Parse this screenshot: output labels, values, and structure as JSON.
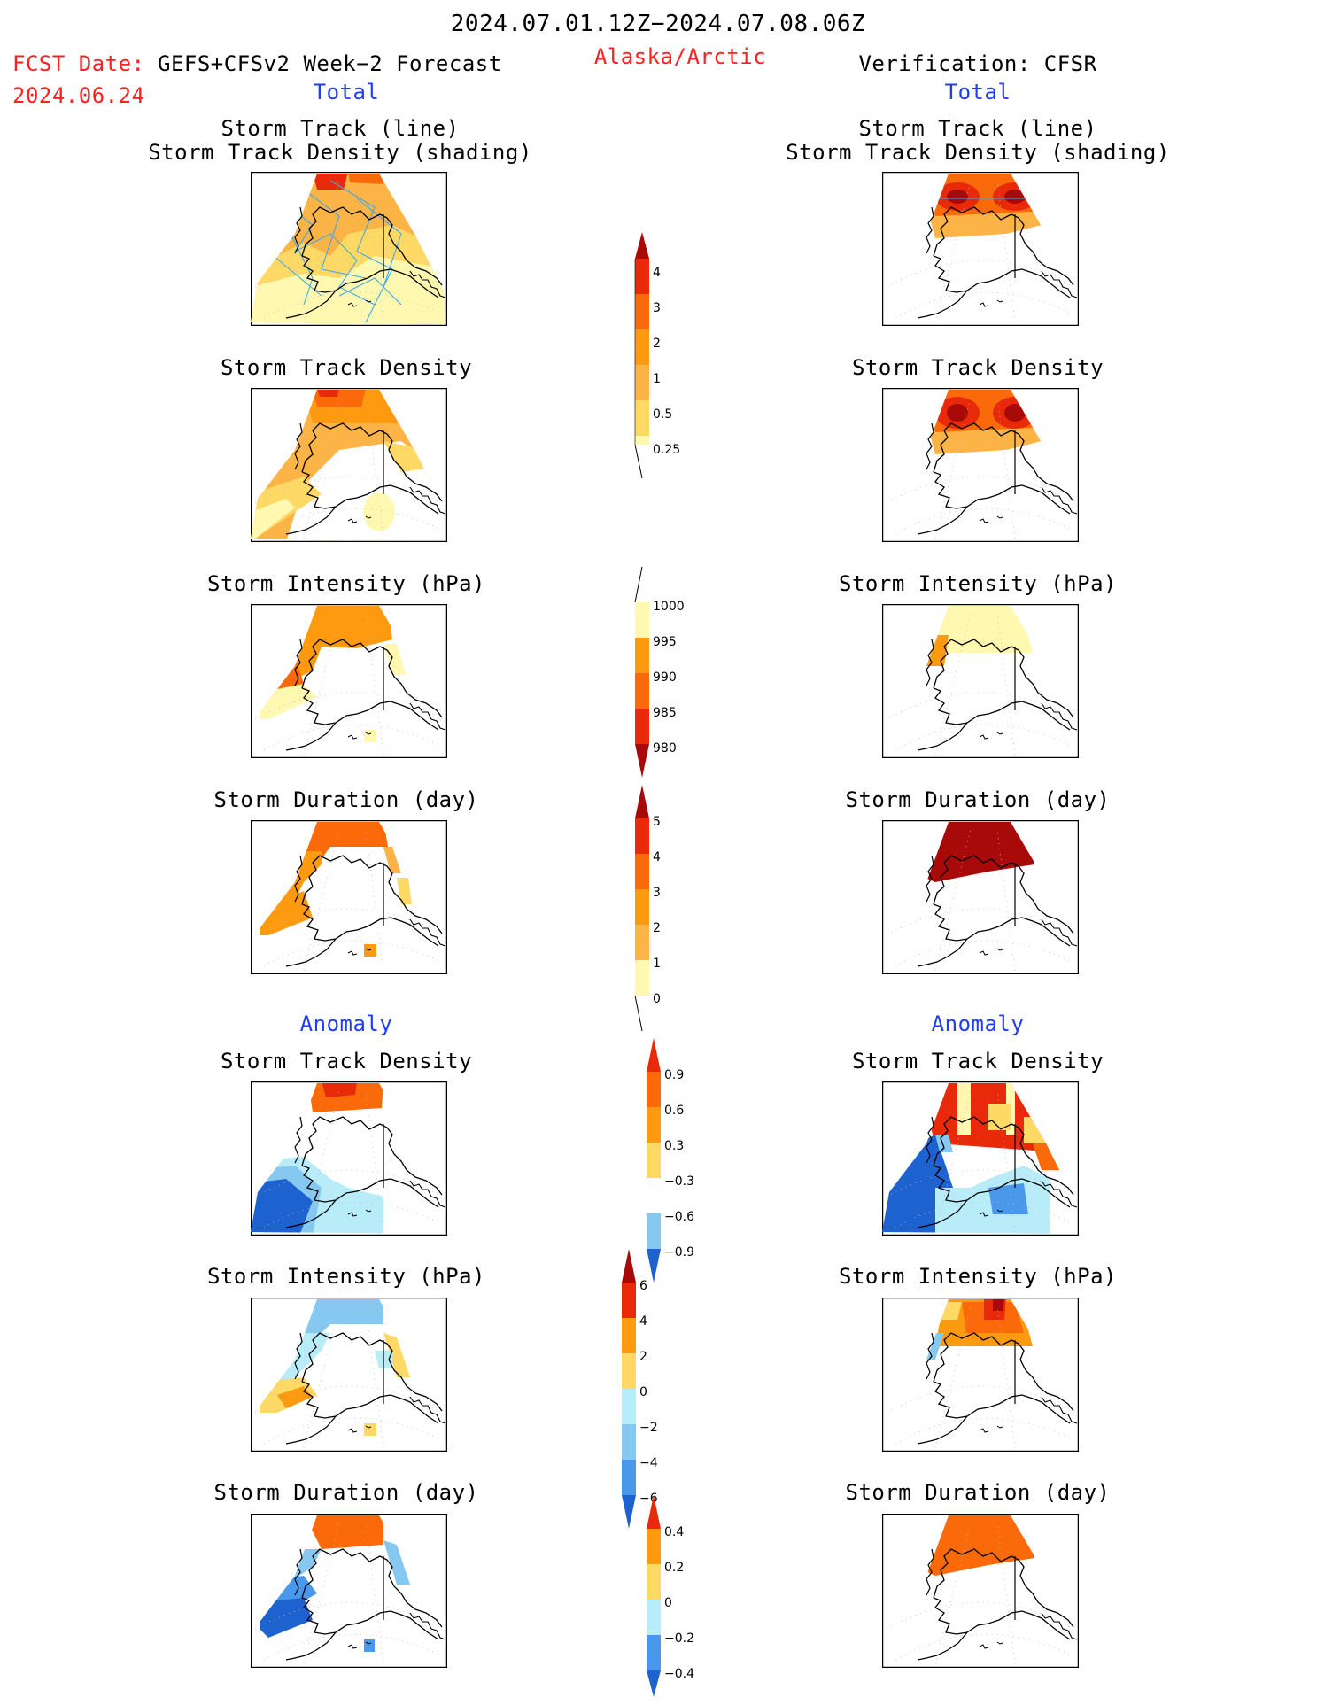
{
  "header": {
    "date_range": "2024.07.01.12Z−2024.07.08.06Z",
    "fcst_label": "FCST Date:",
    "fcst_source": "GEFS+CFSv2 Week−2 Forecast",
    "fcst_date": "2024.06.24",
    "region": "Alaska/Arctic",
    "verification": "Verification: CFSR"
  },
  "sections": {
    "total_left": "Total",
    "total_right": "Total",
    "anomaly_left": "Anomaly",
    "anomaly_right": "Anomaly"
  },
  "panels": {
    "track_line": "Storm Track (line)",
    "track_density_shading": "Storm Track Density (shading)",
    "track_density": "Storm Track Density",
    "intensity": "Storm Intensity (hPa)",
    "duration": "Storm Duration (day)"
  },
  "colorbars": {
    "density": [
      "4",
      "3",
      "2",
      "1",
      "0.5",
      "0.25"
    ],
    "intensity": [
      "1000",
      "995",
      "990",
      "985",
      "980"
    ],
    "duration": [
      "5",
      "4",
      "3",
      "2",
      "1",
      "0"
    ],
    "density_anom": [
      "0.9",
      "0.6",
      "0.3",
      "−0.3",
      "−0.6",
      "−0.9"
    ],
    "intensity_anom": [
      "6",
      "4",
      "2",
      "0",
      "−2",
      "−4",
      "−6"
    ],
    "duration_anom": [
      "0.4",
      "0.2",
      "0",
      "−0.2",
      "−0.4"
    ]
  },
  "colors": {
    "warm_1": "#fff8b0",
    "warm_2": "#ffd966",
    "warm_3": "#fdb446",
    "warm_4": "#fd9a10",
    "warm_5": "#fa6a0a",
    "warm_6": "#e82a0a",
    "warm_7": "#a80a0a",
    "cool_1": "#b8ecf8",
    "cool_2": "#86c8f0",
    "cool_3": "#4a98ec",
    "cool_4": "#1e62d0",
    "track_line": "#40a8ec",
    "title_red": "#ff2020",
    "title_blue": "#1e3cff"
  }
}
